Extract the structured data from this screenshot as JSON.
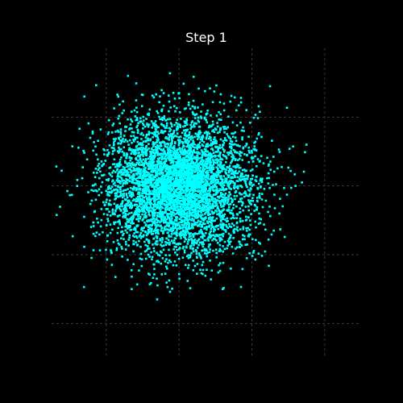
{
  "chart_data": {
    "type": "scatter",
    "title": "Step 1",
    "xlabel": "",
    "ylabel": "",
    "xlim": [
      -3.5,
      5.0
    ],
    "ylim": [
      -5.0,
      4.0
    ],
    "x_gridlines": [
      -2,
      0,
      2,
      4
    ],
    "y_gridlines": [
      -4,
      -2,
      0,
      2
    ],
    "x_tick_labels": [],
    "y_tick_labels": [],
    "grid": true,
    "axes_visible": false,
    "legend": "none",
    "background_color": "#000000",
    "point_color": "#00ffff",
    "grid_color": "#3a3a3a",
    "series": [
      {
        "distribution": "2d-gaussian",
        "point_count": 5000,
        "center": [
          0.0,
          0.0
        ],
        "std": [
          1.0,
          1.0
        ],
        "outliers": [
          {
            "x": -3.6,
            "y": 1.8
          },
          {
            "x": 3.5,
            "y": 1.2
          },
          {
            "x": -4.1,
            "y": -1.6
          },
          {
            "x": -2.6,
            "y": 2.6
          },
          {
            "x": -1.4,
            "y": 3.2
          },
          {
            "x": 2.5,
            "y": 2.9
          },
          {
            "x": 3.2,
            "y": 0.0
          },
          {
            "x": -0.6,
            "y": -3.3
          },
          {
            "x": -1.3,
            "y": -3.0
          },
          {
            "x": 1.2,
            "y": -3.0
          }
        ]
      }
    ]
  }
}
